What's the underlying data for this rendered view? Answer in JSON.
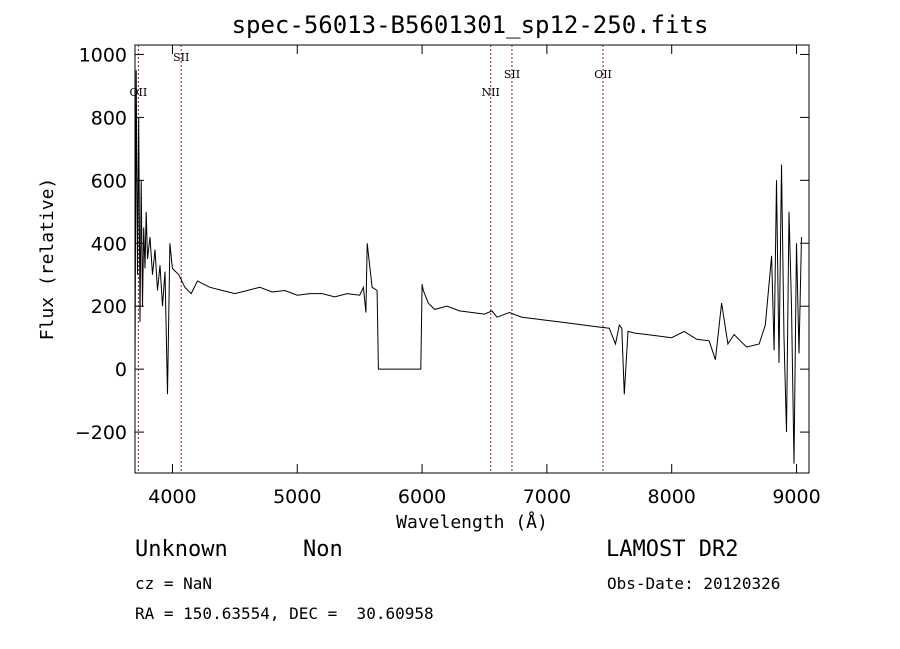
{
  "chart_data": {
    "type": "line",
    "title": "spec-56013-B5601301_sp12-250.fits",
    "xlabel": "Wavelength (Å)",
    "ylabel": "Flux (relative)",
    "xlim": [
      3700,
      9100
    ],
    "ylim": [
      -330,
      1030
    ],
    "xticks": [
      4000,
      5000,
      6000,
      7000,
      8000,
      9000
    ],
    "yticks": [
      -200,
      0,
      200,
      400,
      600,
      800,
      1000
    ],
    "grid": false,
    "line_color": "#000000",
    "marker_color": "#8b1a1a",
    "series": [
      {
        "x": [
          3700,
          3710,
          3720,
          3730,
          3740,
          3750,
          3760,
          3770,
          3780,
          3790,
          3800,
          3820,
          3840,
          3860,
          3880,
          3900,
          3920,
          3940,
          3960,
          3980,
          4000,
          4050,
          4100,
          4150,
          4200,
          4300,
          4400,
          4500,
          4600,
          4700,
          4800,
          4900,
          5000,
          5100,
          5200,
          5300,
          5400,
          5500,
          5530,
          5550,
          5560,
          5600,
          5640,
          5650,
          5660,
          5700,
          5800,
          5900,
          5990,
          6000,
          6010,
          6050,
          6100,
          6200,
          6300,
          6400,
          6500,
          6560,
          6600,
          6700,
          6800,
          6900,
          7000,
          7100,
          7200,
          7300,
          7400,
          7500,
          7550,
          7580,
          7600,
          7620,
          7650,
          7700,
          7800,
          7900,
          8000,
          8100,
          8200,
          8300,
          8350,
          8400,
          8450,
          8500,
          8600,
          8700,
          8750,
          8800,
          8820,
          8840,
          8860,
          8880,
          8900,
          8920,
          8940,
          8960,
          8980,
          9000,
          9020,
          9040
        ],
        "y": [
          0,
          950,
          300,
          800,
          150,
          600,
          200,
          450,
          320,
          500,
          350,
          420,
          300,
          380,
          250,
          330,
          200,
          310,
          -80,
          400,
          320,
          300,
          260,
          240,
          280,
          260,
          250,
          240,
          250,
          260,
          245,
          250,
          235,
          240,
          240,
          230,
          240,
          235,
          260,
          180,
          400,
          260,
          250,
          0,
          0,
          0,
          0,
          0,
          0,
          270,
          250,
          210,
          190,
          200,
          185,
          180,
          175,
          185,
          165,
          180,
          165,
          160,
          155,
          150,
          145,
          140,
          135,
          130,
          80,
          140,
          130,
          -80,
          120,
          115,
          110,
          105,
          100,
          120,
          95,
          90,
          30,
          210,
          80,
          110,
          70,
          80,
          140,
          360,
          60,
          600,
          20,
          650,
          100,
          -200,
          500,
          200,
          -300,
          400,
          50,
          420
        ]
      }
    ],
    "lines": [
      {
        "label": "OII",
        "x": 3727
      },
      {
        "label": "SII",
        "x": 4070
      },
      {
        "label": "NII",
        "x": 6550
      },
      {
        "label": "SII",
        "x": 6720
      },
      {
        "label": "OII",
        "x": 7450
      }
    ]
  },
  "footer": {
    "class_name": "Unknown",
    "subclass": "Non",
    "survey": "LAMOST DR2",
    "cz": "cz = NaN",
    "obs_date": "Obs-Date: 20120326",
    "coords": "RA = 150.63554, DEC =  30.60958"
  }
}
